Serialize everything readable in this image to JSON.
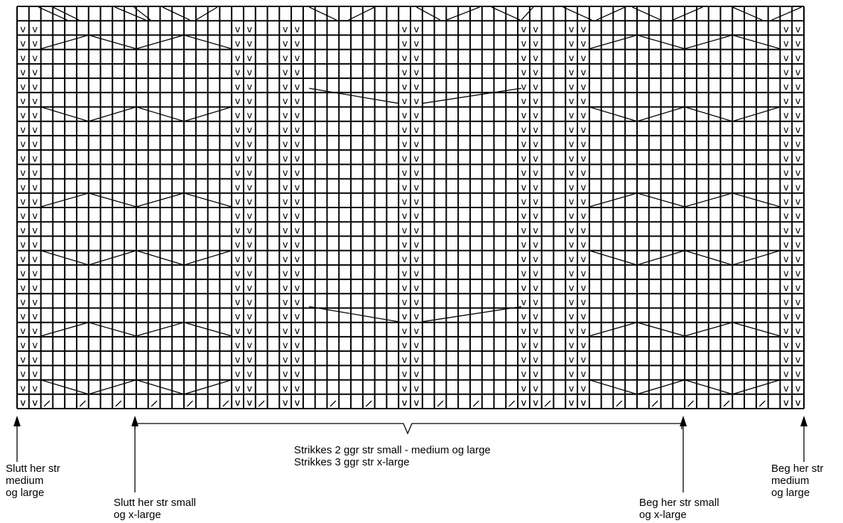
{
  "chart_data": {
    "type": "knitting-chart",
    "columns": 66,
    "rows": 28,
    "slip_stitch_glyph": "V",
    "slip_stitch_column_pairs": [
      [
        1,
        2
      ],
      [
        19,
        20
      ],
      [
        23,
        24
      ],
      [
        33,
        34
      ],
      [
        43,
        44
      ],
      [
        47,
        48
      ],
      [
        65,
        66
      ]
    ],
    "cast_off_glyph": "/"
  },
  "labels": {
    "brace_text_line1": "Strikkes 2 ggr str small - medium og large",
    "brace_text_line2": "Strikkes 3 ggr str x-large",
    "slutt_medium_line1": "Slutt her str",
    "slutt_medium_line2": "medium",
    "slutt_medium_line3": "og large",
    "slutt_small_line1": "Slutt her str small",
    "slutt_small_line2": "og x-large",
    "beg_small_line1": "Beg her str small",
    "beg_small_line2": "og x-large",
    "beg_medium_line1": "Beg her str",
    "beg_medium_line2": "medium",
    "beg_medium_line3": "og large"
  }
}
